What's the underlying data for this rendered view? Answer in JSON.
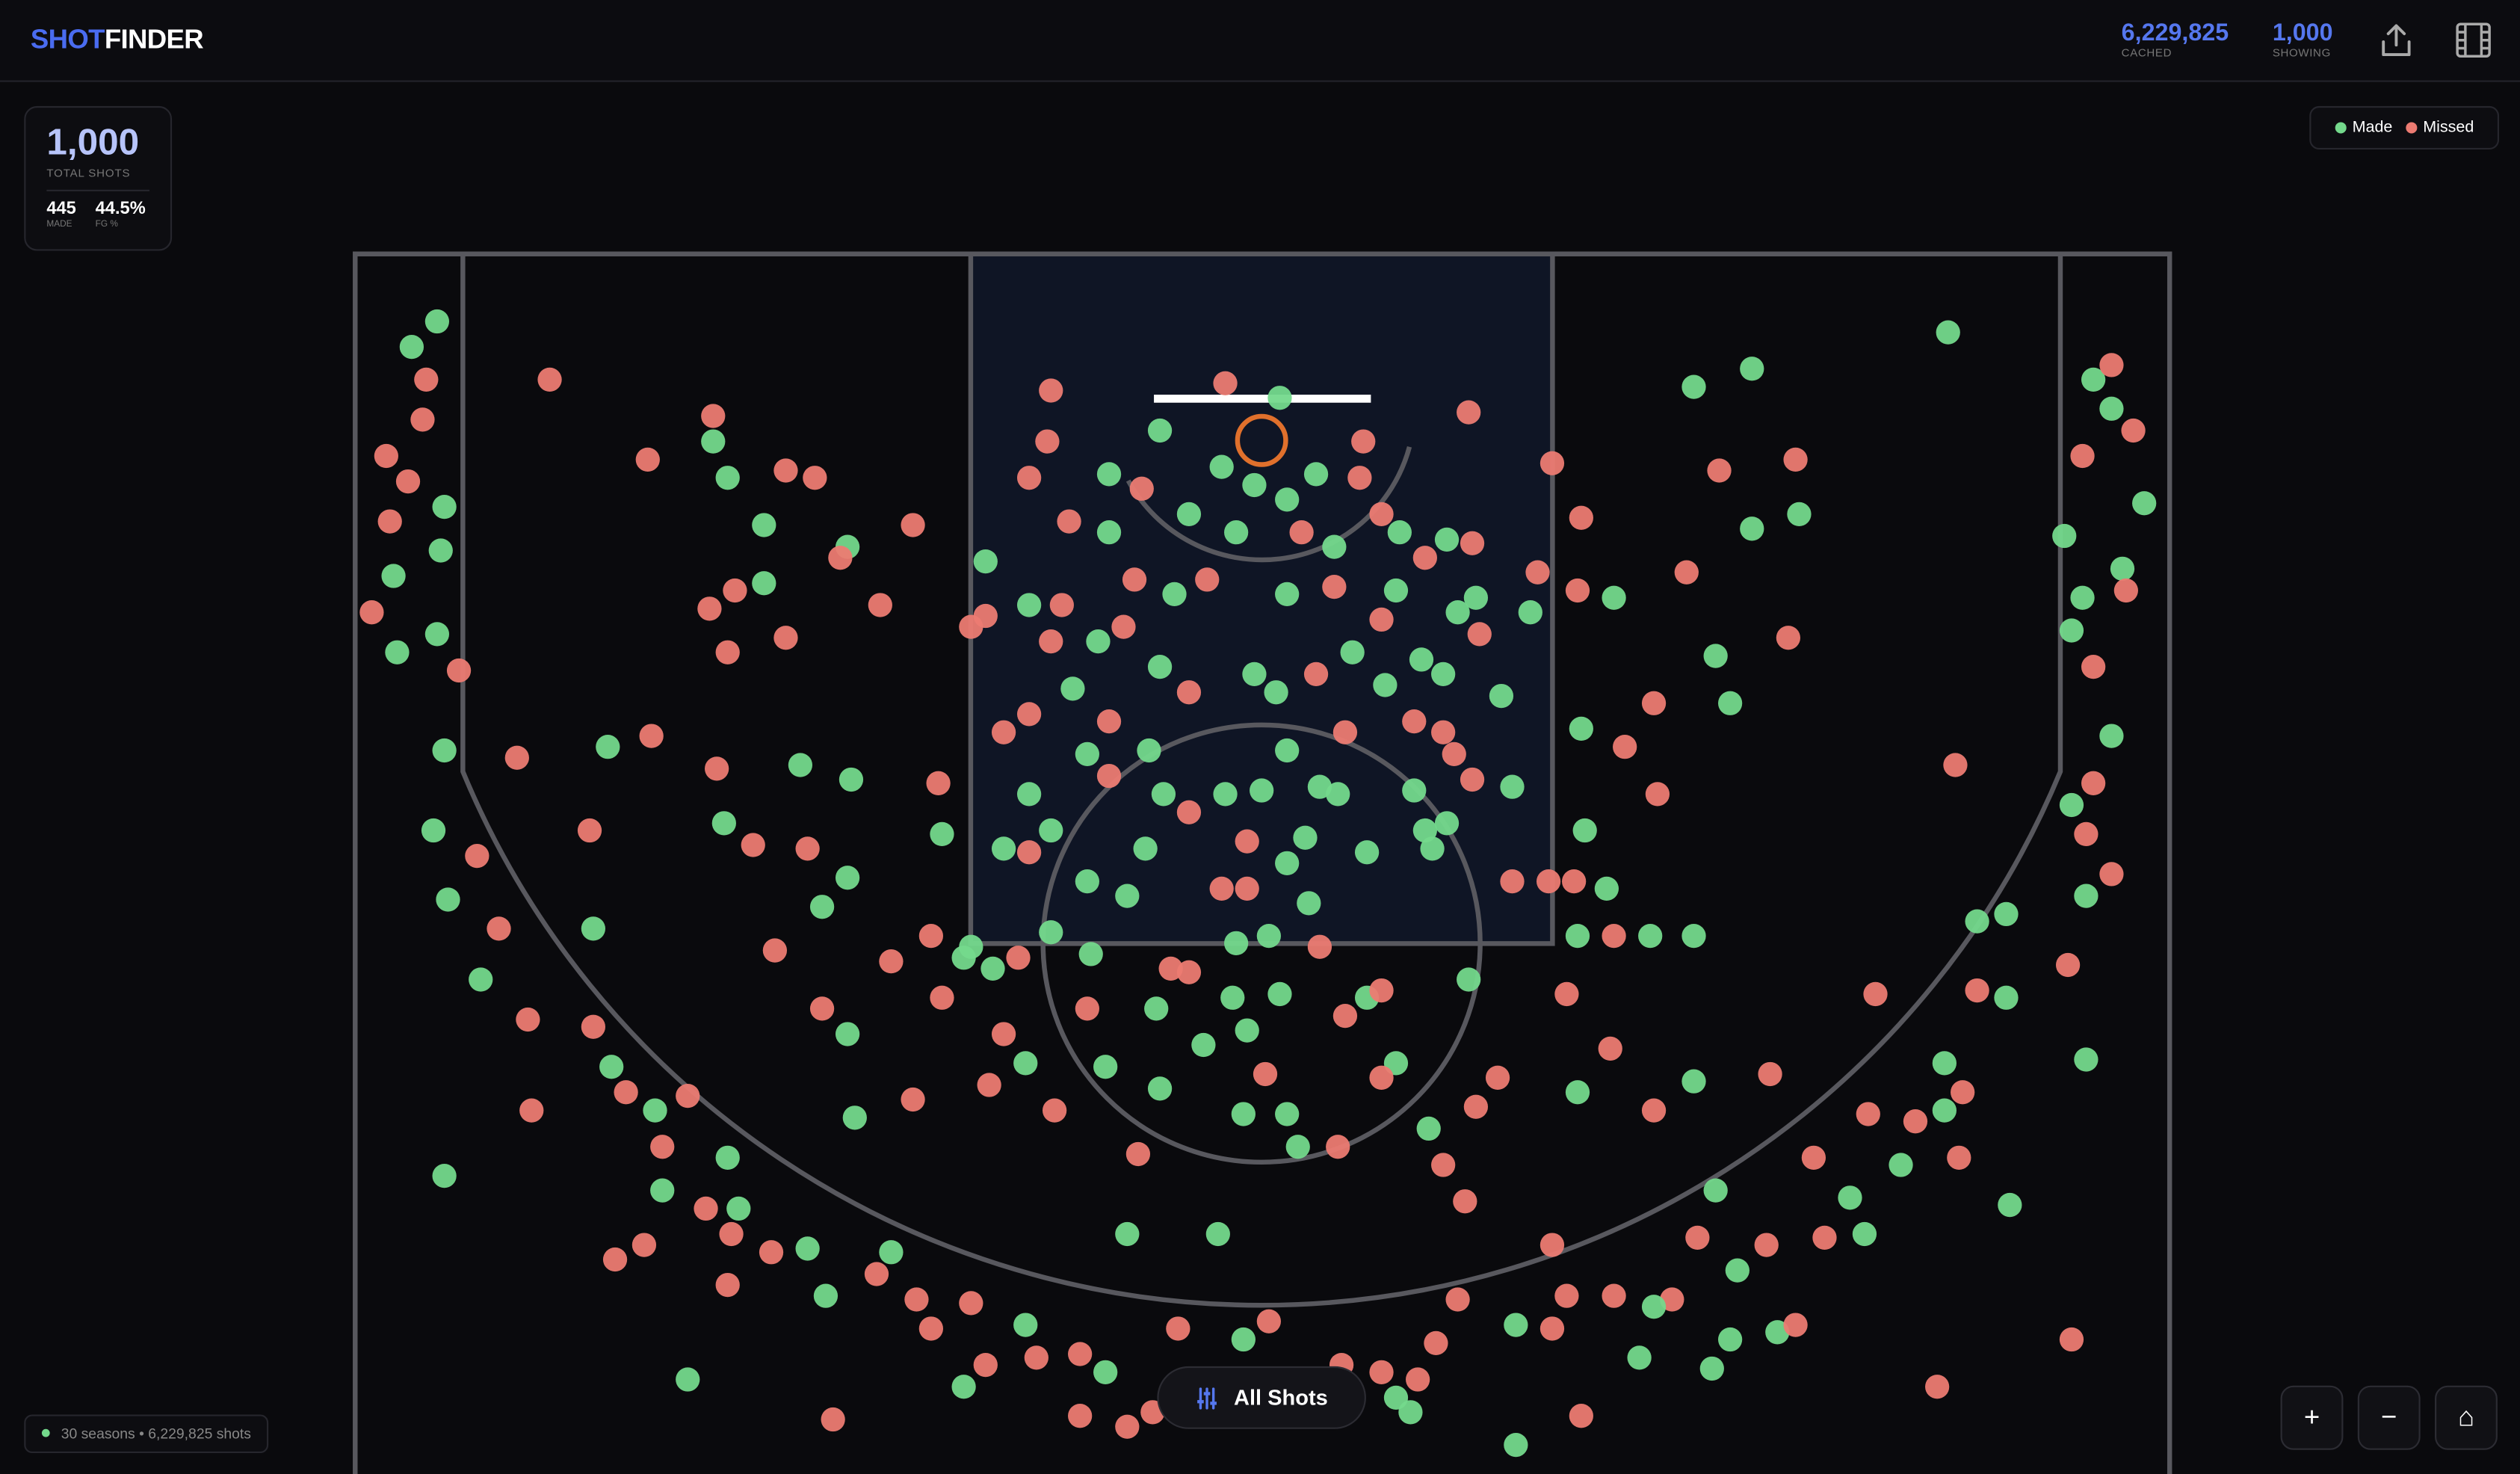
{
  "header": {
    "brand": [
      "SHOT",
      "FINDER"
    ],
    "stats": [
      {
        "value": "6,229,825",
        "label": "CACHED"
      },
      {
        "value": "1,000",
        "label": "SHOWING"
      }
    ]
  },
  "summary": {
    "total": "1,000",
    "total_label": "TOTAL SHOTS",
    "made": "445",
    "made_label": "MADE",
    "fg": "44.5%",
    "fg_label": "FG %"
  },
  "footer": {
    "status": "30 seasons • 6,229,825 shots",
    "filter_button": "All Shots",
    "zoom": [
      "+",
      "−",
      "⌂"
    ]
  },
  "chart_data": {
    "type": "scatter",
    "xlim": [
      -25,
      25
    ],
    "ylim": [
      0,
      33.6
    ],
    "legend": "top-right",
    "series": [
      {
        "name": "Made",
        "color": "#74d98c",
        "x": [
          -22.7,
          -23.4,
          -22.5,
          -22.6,
          -23.9,
          -22.7,
          -23.8,
          22.9,
          23.4,
          24.3,
          22.1,
          23.7,
          22.6,
          22.3,
          -22.5,
          -22.8,
          -22.4,
          -21.5,
          -17.9,
          -16.7,
          -14.7,
          -16.5,
          -14.4,
          -12.5,
          -12.0,
          -10.2,
          -6.5,
          -8.2,
          -15.8,
          -22.5,
          18.9,
          11.9,
          13.5,
          14.8,
          13.5,
          12.5,
          12.9,
          9.7,
          23.4,
          22.3,
          22.7,
          20.5,
          19.7,
          20.5,
          22.7,
          18.8,
          18.8,
          17.6,
          16.2,
          16.6,
          20.6,
          13.1,
          12.5,
          11.9,
          14.2,
          12.9,
          12.4,
          10.8,
          7.0,
          3.7,
          7.0,
          10.4,
          -15.1,
          -14.7,
          -13.7,
          -11.4,
          -13.7,
          -12.7,
          -11.3,
          -18.0,
          -14.8,
          -18.4,
          -11.4,
          -12.1,
          -11.4,
          -11.2,
          -7.6,
          -8.8,
          -6.5,
          -3.7,
          -1.2,
          10.7,
          11.9,
          8.7,
          8.7,
          4.6,
          8.9,
          9.5,
          8.8,
          7.4,
          6.6,
          6.9,
          5.1,
          0.5,
          -2.8,
          -4.2,
          -1.1,
          -0.2,
          0.7,
          1.5,
          -2.0,
          -0.7,
          2.0,
          3.8,
          5.1,
          -4.2,
          -2.4,
          0.7,
          3.7,
          2.5,
          0.4,
          -0.2,
          -2.8,
          -4.5,
          -6.4,
          -5.2,
          -4.8,
          -3.1,
          -2.7,
          -6.4,
          -5.8,
          -7.1,
          -4.8,
          -3.7,
          -3.2,
          -1.0,
          0.0,
          0.7,
          1.6,
          2.1,
          1.2,
          0.7,
          1.3,
          2.9,
          4.2,
          4.5,
          4.7,
          3.4,
          4.4,
          5.0,
          5.4,
          5.9,
          -0.7,
          0.2,
          -0.8,
          0.5,
          -0.4,
          -1.6,
          2.9,
          5.7,
          -0.5,
          0.7,
          1.0,
          3.7,
          -2.9,
          -4.3,
          -2.8,
          -4.7,
          -5.8,
          -8.0,
          -8.2,
          -7.4,
          -0.5,
          -4.3,
          4.1
        ],
        "y": [
          1.9,
          2.6,
          7.0,
          8.2,
          8.9,
          10.5,
          11.0,
          3.5,
          4.3,
          6.9,
          7.8,
          8.7,
          9.5,
          10.4,
          13.7,
          15.9,
          17.8,
          20.0,
          22.4,
          23.6,
          24.9,
          25.8,
          26.3,
          27.4,
          28.7,
          27.5,
          29.5,
          31.2,
          31.0,
          25.4,
          2.2,
          3.7,
          3.2,
          7.2,
          7.6,
          11.1,
          12.4,
          9.5,
          13.3,
          15.2,
          17.7,
          18.2,
          18.4,
          20.5,
          22.2,
          22.3,
          23.6,
          25.1,
          26.0,
          27.0,
          26.2,
          28.0,
          25.8,
          22.8,
          29.7,
          29.9,
          30.7,
          29.0,
          29.5,
          31.5,
          32.8,
          30.4,
          5.2,
          6.2,
          7.5,
          8.1,
          9.1,
          14.1,
          14.5,
          13.6,
          15.7,
          18.6,
          17.2,
          18.0,
          21.5,
          23.8,
          8.5,
          16.0,
          22.3,
          27.0,
          27.0,
          18.8,
          18.8,
          18.8,
          23.1,
          24.1,
          15.9,
          17.5,
          13.1,
          9.9,
          12.2,
          14.7,
          15.7,
          4.0,
          4.9,
          6.1,
          5.9,
          6.4,
          6.8,
          6.1,
          7.2,
          7.7,
          8.1,
          7.7,
          7.9,
          7.7,
          9.4,
          9.4,
          9.3,
          11.0,
          12.1,
          11.6,
          11.4,
          10.7,
          9.7,
          12.0,
          13.8,
          13.7,
          14.9,
          14.9,
          15.9,
          16.4,
          17.3,
          17.7,
          16.4,
          14.9,
          14.8,
          13.7,
          14.7,
          14.9,
          16.1,
          16.8,
          17.9,
          16.5,
          14.8,
          15.9,
          16.4,
          11.9,
          11.2,
          11.6,
          9.9,
          9.5,
          19.0,
          18.8,
          20.5,
          20.4,
          21.4,
          21.8,
          20.5,
          20.0,
          23.7,
          23.7,
          24.6,
          22.3,
          20.8,
          22.4,
          23.0,
          19.3,
          18.7,
          19.1,
          19.4,
          19.7,
          29.9,
          30.8,
          31.9
        ]
      },
      {
        "name": "Missed",
        "color": "#ec7b72",
        "x": [
          -23.0,
          -23.1,
          -24.1,
          -23.5,
          -24.0,
          -24.5,
          -22.1,
          23.4,
          24.0,
          22.6,
          23.8,
          22.9,
          -20.5,
          -21.6,
          -21.0,
          -20.2,
          -18.4,
          -20.1,
          -17.5,
          -16.5,
          -15.8,
          -15.3,
          -17.0,
          -17.8,
          -14.6,
          -13.5,
          -14.7,
          -10.6,
          -9.5,
          -9.1,
          -8.0,
          -7.6,
          -6.2,
          -11.8,
          12.6,
          14.7,
          11.7,
          14.5,
          10.8,
          8.8,
          8.0,
          19.1,
          22.9,
          22.7,
          23.4,
          22.2,
          19.7,
          16.9,
          19.3,
          18.0,
          19.2,
          16.7,
          15.2,
          15.5,
          13.9,
          12.0,
          14.0,
          14.7,
          11.3,
          9.7,
          8.4,
          8.0,
          5.4,
          4.8,
          4.3,
          8.8,
          18.6,
          22.3,
          8.0,
          -19.6,
          -15.1,
          -16.9,
          -13.1,
          -12.3,
          -11.6,
          -9.6,
          -14.5,
          -15.2,
          -13.1,
          -14.7,
          -10.5,
          -15.0,
          -16.8,
          -14.0,
          -12.5,
          -18.5,
          -13.4,
          -12.1,
          -9.6,
          -7.6,
          -8.0,
          -8.9,
          -9.1,
          -10.2,
          -8.8,
          -7.1,
          -7.5,
          -5.7,
          -3.4,
          9.7,
          8.4,
          9.6,
          10.8,
          6.5,
          5.9,
          5.0,
          5.6,
          8.6,
          7.9,
          6.9,
          10.0,
          10.9,
          8.7,
          7.6,
          5.7,
          5.8,
          -1.0,
          -5.8,
          -5.9,
          -6.4,
          -5.3,
          -3.3,
          2.7,
          2.8,
          1.1,
          3.3,
          4.5,
          5.8,
          -3.5,
          -1.5,
          2.0,
          3.3,
          1.5,
          -2.0,
          -3.8,
          -5.5,
          -5.8,
          -6.4,
          -7.1,
          -4.2,
          -4.2,
          -6.4,
          -2.0,
          2.3,
          -0.4,
          -1.1,
          -0.4,
          5.3,
          5.0,
          4.2,
          6.0,
          1.6,
          -2.5,
          -2.0,
          2.3,
          3.3,
          0.1,
          2.1,
          3.3,
          -4.8,
          -6.7,
          -2.3,
          0.2,
          -3.0,
          -3.7,
          -5.0,
          -5.0,
          3.3,
          2.2
        ],
        "y": [
          3.5,
          4.6,
          5.6,
          6.3,
          7.4,
          9.9,
          11.5,
          3.1,
          4.9,
          5.6,
          9.3,
          11.4,
          13.9,
          16.6,
          18.6,
          21.1,
          21.3,
          23.6,
          23.1,
          24.6,
          23.2,
          26.3,
          27.3,
          27.7,
          27.0,
          27.5,
          28.4,
          28.1,
          28.8,
          29.6,
          28.9,
          30.6,
          30.4,
          32.1,
          6.0,
          5.7,
          8.8,
          10.6,
          12.4,
          7.3,
          5.8,
          14.1,
          14.6,
          16.0,
          17.1,
          19.6,
          20.3,
          20.4,
          23.1,
          23.9,
          24.9,
          23.7,
          24.9,
          27.1,
          27.3,
          27.1,
          22.6,
          29.5,
          28.8,
          28.7,
          28.7,
          29.6,
          28.8,
          30.0,
          31.0,
          32.0,
          31.2,
          29.9,
          27.3,
          3.5,
          4.5,
          5.7,
          6.0,
          6.2,
          8.4,
          7.5,
          9.3,
          9.8,
          10.6,
          11.0,
          9.7,
          14.2,
          13.3,
          16.3,
          16.4,
          15.9,
          19.2,
          20.8,
          23.3,
          10.0,
          10.3,
          14.6,
          18.8,
          19.5,
          20.5,
          21.5,
          22.9,
          23.6,
          24.8,
          18.8,
          20.4,
          21.9,
          23.6,
          22.7,
          23.5,
          25.1,
          26.1,
          17.3,
          17.3,
          17.3,
          13.6,
          14.9,
          9.3,
          8.8,
          4.4,
          14.5,
          3.6,
          3.8,
          5.2,
          6.2,
          7.4,
          6.5,
          6.2,
          5.2,
          7.7,
          7.2,
          8.4,
          8.0,
          9.0,
          9.0,
          9.2,
          10.1,
          11.6,
          12.1,
          10.3,
          9.7,
          10.7,
          12.7,
          13.2,
          12.9,
          14.4,
          16.5,
          15.4,
          13.2,
          16.2,
          17.5,
          17.5,
          13.8,
          13.2,
          12.9,
          10.5,
          19.1,
          19.7,
          19.8,
          21.0,
          20.3,
          22.6,
          24.6,
          22.7,
          20.8,
          19.4,
          29.6,
          29.4,
          31.9,
          32.3,
          32.0,
          30.3,
          30.8,
          30.6
        ]
      }
    ]
  }
}
